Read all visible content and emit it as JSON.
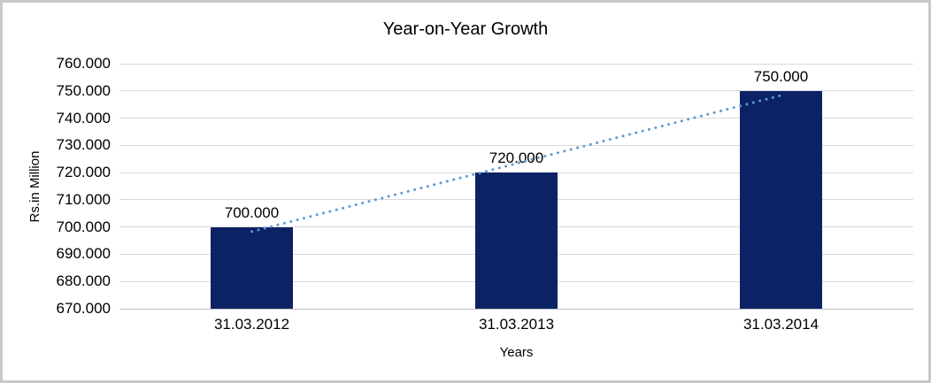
{
  "chart_data": {
    "type": "bar",
    "title": "Year-on-Year Growth",
    "xlabel": "Years",
    "ylabel": "Rs.in Million",
    "categories": [
      "31.03.2012",
      "31.03.2013",
      "31.03.2014"
    ],
    "values": [
      700,
      720,
      750
    ],
    "value_labels": [
      "700.000",
      "720.000",
      "750.000"
    ],
    "ylim": [
      670,
      760
    ],
    "ytick_step": 10,
    "ytick_labels": [
      "670.000",
      "680.000",
      "690.000",
      "700.000",
      "710.000",
      "720.000",
      "730.000",
      "740.000",
      "750.000",
      "760.000"
    ],
    "grid": true,
    "legend": "none",
    "trendline": {
      "type": "linear",
      "style": "dotted",
      "start_value": 698.33,
      "end_value": 748.33
    },
    "colors": {
      "bar": "#0b2265",
      "trendline": "#5b9bd5",
      "gridline": "#d9d9d9",
      "axis_line": "#bfbfbf",
      "text": "#000000",
      "frame_border": "#c9c9c9"
    }
  }
}
